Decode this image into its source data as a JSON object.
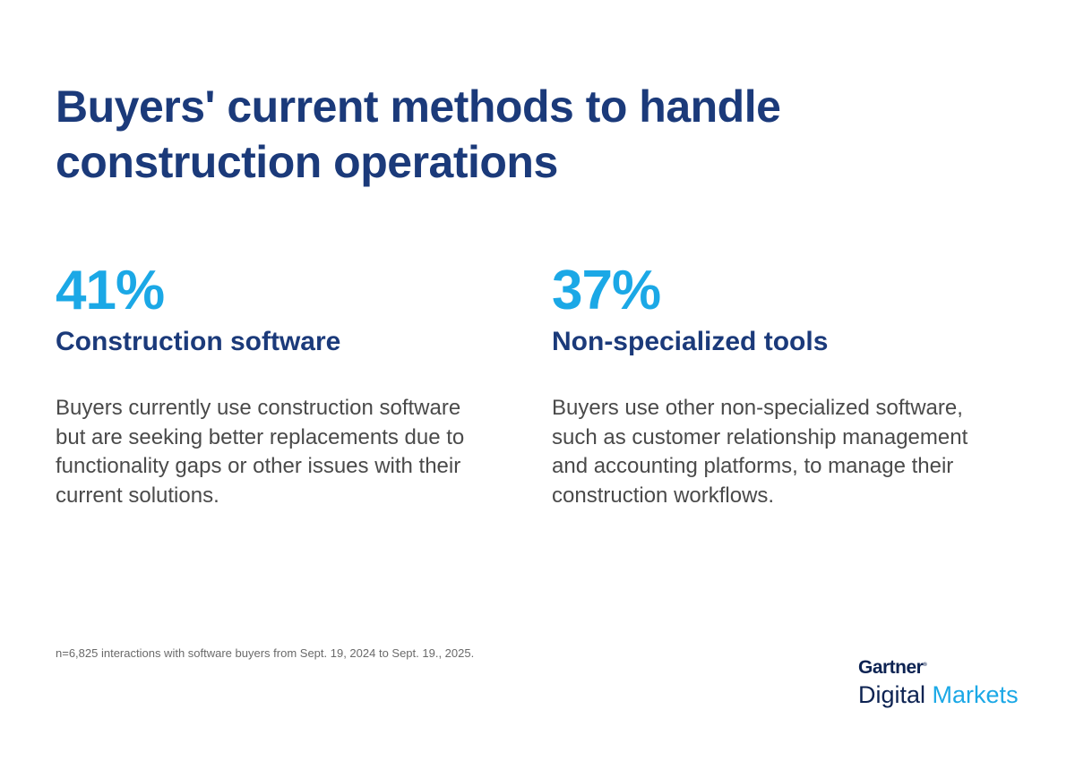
{
  "title": "Buyers' current methods to handle construction operations",
  "stats": [
    {
      "percent": "41%",
      "label": "Construction software",
      "description": "Buyers currently use construction software but are seeking better replacements due to functionality gaps or other issues with their current solutions."
    },
    {
      "percent": "37%",
      "label": "Non-specialized tools",
      "description": "Buyers use other non-specialized software, such as customer relationship management and accounting platforms, to manage their construction workflows."
    }
  ],
  "footnote": "n=6,825 interactions with software buyers from Sept. 19, 2024 to Sept. 19., 2025.",
  "logo": {
    "brand": "Gartner",
    "line1": "Digital",
    "line2": "Markets"
  },
  "colors": {
    "navy": "#1b3a7a",
    "accent": "#1ba8e6"
  }
}
